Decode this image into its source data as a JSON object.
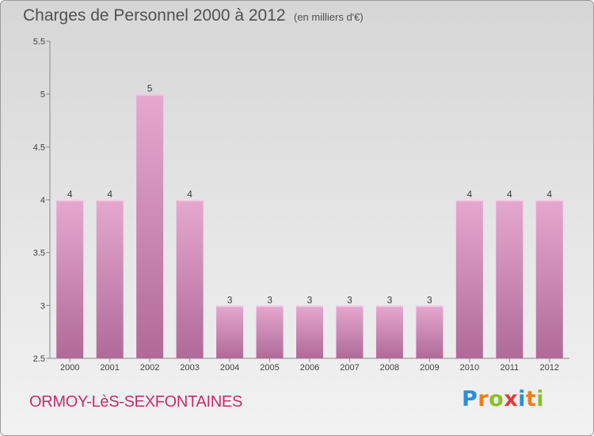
{
  "header": {
    "title": "Charges de Personnel 2000 à 2012",
    "subtitle": "(en milliers d'€)"
  },
  "footer": {
    "commune": "ORMOY-LèS-SEXFONTAINES",
    "brand": [
      "P",
      "r",
      "o",
      "x",
      "i",
      "t",
      "i"
    ]
  },
  "colors": {
    "bar_top": "#e6a8cf",
    "bar_bottom": "#b06a98",
    "commune_text": "#c42e6a"
  },
  "chart_data": {
    "type": "bar",
    "title": "Charges de Personnel 2000 à 2012",
    "categories": [
      "2000",
      "2001",
      "2002",
      "2003",
      "2004",
      "2005",
      "2006",
      "2007",
      "2008",
      "2009",
      "2010",
      "2011",
      "2012"
    ],
    "values": [
      4,
      4,
      5,
      4,
      3,
      3,
      3,
      3,
      3,
      3,
      4,
      4,
      4
    ],
    "data_labels": [
      "4",
      "4",
      "5",
      "4",
      "3",
      "3",
      "3",
      "3",
      "3",
      "3",
      "4",
      "4",
      "4"
    ],
    "ylim": [
      2.5,
      5.5
    ],
    "yticks": [
      2.5,
      3,
      3.5,
      4,
      4.5,
      5,
      5.5
    ],
    "ytick_labels": [
      "2.5",
      "3",
      "3.5",
      "4",
      "4.5",
      "5",
      "5.5"
    ],
    "xlabel": "",
    "ylabel": "",
    "grid": false
  }
}
